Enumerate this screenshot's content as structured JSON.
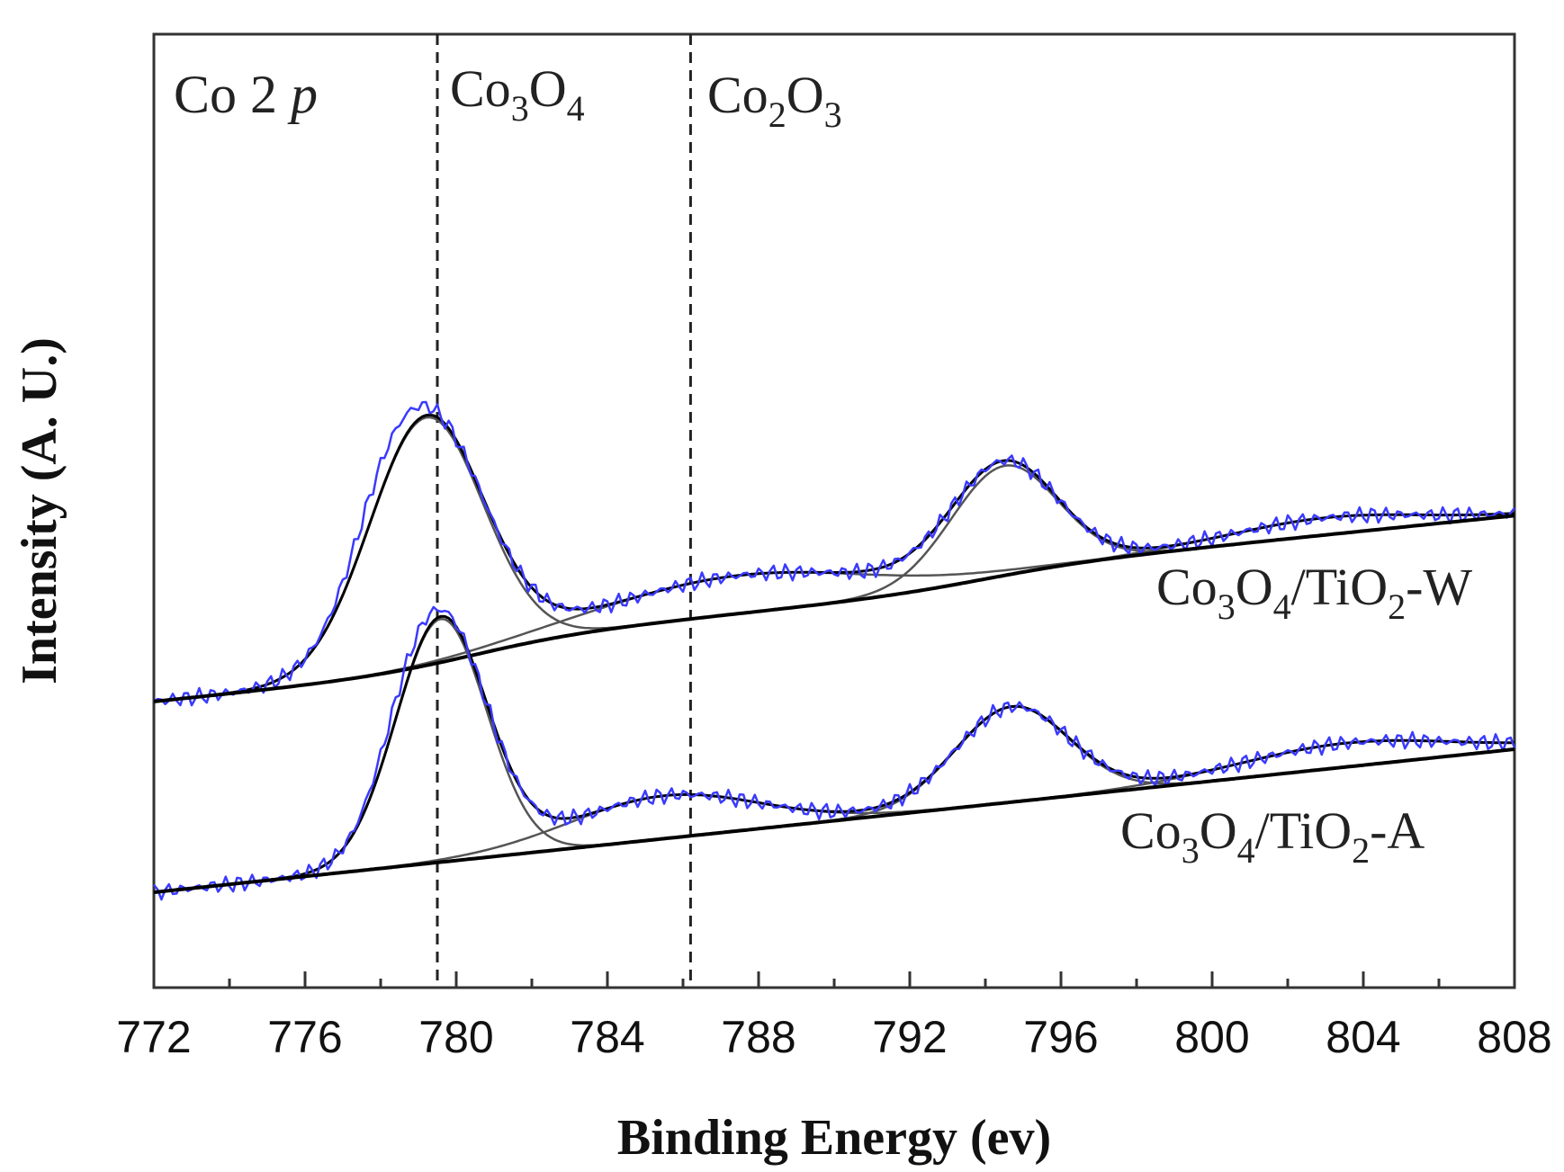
{
  "chart_data": {
    "type": "line",
    "title": "",
    "panel_label": "Co 2p",
    "xlabel": "Binding Energy (ev)",
    "ylabel": "Intensity (A. U.)",
    "xlim": [
      772,
      808
    ],
    "ylim": [
      0,
      100
    ],
    "xticks": [
      772,
      776,
      780,
      784,
      788,
      792,
      796,
      800,
      804,
      808
    ],
    "xtick_labels": [
      "772",
      "776",
      "780",
      "784",
      "788",
      "792",
      "796",
      "800",
      "804",
      "808"
    ],
    "reference_lines": [
      {
        "label": "Co3O4",
        "base": "Co",
        "sub1": "3",
        "mid": "O",
        "sub2": "4",
        "x": 779.5
      },
      {
        "label": "Co2O3",
        "base": "Co",
        "sub1": "2",
        "mid": "O",
        "sub2": "3",
        "x": 786.2
      }
    ],
    "series_labels": [
      {
        "name": "Co3O4/TiO2-W",
        "parts": [
          "Co",
          "3",
          "O",
          "4",
          "/TiO",
          "2",
          "-W"
        ]
      },
      {
        "name": "Co3O4/TiO2-A",
        "parts": [
          "Co",
          "3",
          "O",
          "4",
          "/TiO",
          "2",
          "-A"
        ]
      }
    ],
    "colors": {
      "measured": "#3a3aff",
      "fit": "#000000",
      "component": "#555555",
      "frame": "#333333"
    },
    "series": [
      {
        "name": "Co3O4/TiO2-W",
        "baseline": {
          "start": 30.0,
          "end": 44.5,
          "steps": [
            {
              "center": 780.5,
              "height": 3.0,
              "width": 1.5
            },
            {
              "center": 794.0,
              "height": 2.0,
              "width": 1.5
            }
          ]
        },
        "components": [
          {
            "center": 779.2,
            "height": 26.0,
            "width": 1.5
          },
          {
            "center": 787.5,
            "height": 4.0,
            "width": 3.5
          },
          {
            "center": 794.5,
            "height": 11.5,
            "width": 1.4
          },
          {
            "center": 803.0,
            "height": 1.8,
            "width": 2.5
          }
        ],
        "measured_shoulder": {
          "center": 778.0,
          "height": 3.0,
          "width": 0.8
        }
      },
      {
        "name": "Co3O4/TiO2-A",
        "baseline": {
          "start": 10.0,
          "end": 25.0,
          "steps": []
        },
        "components": [
          {
            "center": 779.6,
            "height": 25.5,
            "width": 1.2
          },
          {
            "center": 785.5,
            "height": 4.5,
            "width": 2.5
          },
          {
            "center": 794.7,
            "height": 10.0,
            "width": 1.5
          },
          {
            "center": 803.5,
            "height": 2.5,
            "width": 2.8
          }
        ],
        "measured_shoulder": {
          "center": 778.6,
          "height": 2.0,
          "width": 0.7
        }
      }
    ]
  }
}
